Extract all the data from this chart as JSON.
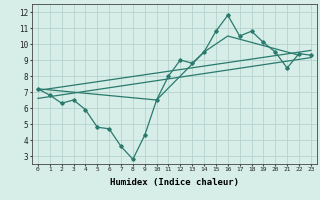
{
  "xlabel": "Humidex (Indice chaleur)",
  "ylabel": "",
  "xlim": [
    -0.5,
    23.5
  ],
  "ylim": [
    2.5,
    12.5
  ],
  "xticks": [
    0,
    1,
    2,
    3,
    4,
    5,
    6,
    7,
    8,
    9,
    10,
    11,
    12,
    13,
    14,
    15,
    16,
    17,
    18,
    19,
    20,
    21,
    22,
    23
  ],
  "yticks": [
    3,
    4,
    5,
    6,
    7,
    8,
    9,
    10,
    11,
    12
  ],
  "line_color": "#2a7a6e",
  "bg_color": "#d6ede8",
  "grid_color": "#aecfc8",
  "line1_x": [
    0,
    1,
    2,
    3,
    4,
    5,
    6,
    7,
    8,
    9,
    10,
    11,
    12,
    13,
    14,
    15,
    16,
    17,
    18,
    19,
    20,
    21,
    22,
    23
  ],
  "line1_y": [
    7.2,
    6.8,
    6.3,
    6.5,
    5.9,
    4.8,
    4.7,
    3.6,
    2.8,
    4.3,
    6.5,
    8.0,
    9.0,
    8.8,
    9.5,
    10.8,
    11.8,
    10.5,
    10.8,
    10.1,
    9.5,
    8.5,
    9.4,
    9.3
  ],
  "line2_x": [
    0,
    10,
    14,
    16,
    22
  ],
  "line2_y": [
    7.2,
    6.5,
    9.5,
    10.5,
    9.3
  ],
  "line3_x": [
    0,
    23
  ],
  "line3_y": [
    7.1,
    9.6
  ],
  "line4_x": [
    0,
    23
  ],
  "line4_y": [
    6.6,
    9.15
  ]
}
